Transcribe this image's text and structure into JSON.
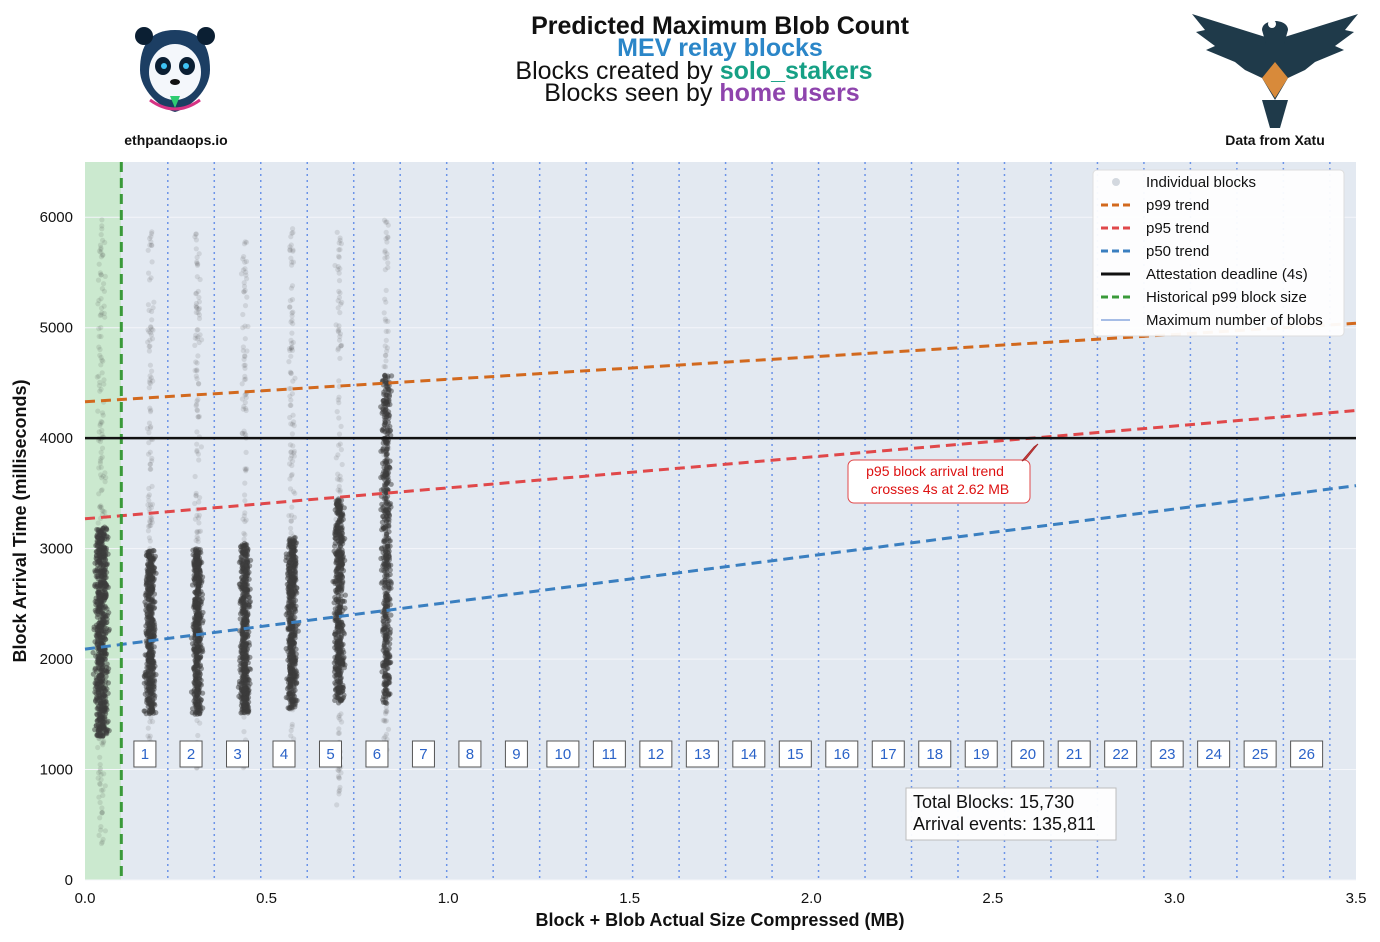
{
  "header": {
    "title": "Predicted Maximum Blob Count",
    "line2": "MEV relay blocks",
    "line3_prefix": "Blocks created by ",
    "line3_highlight": "solo_stakers",
    "line4_prefix": "Blocks seen by ",
    "line4_highlight": "home users",
    "left_brand": "ethpandaops.io",
    "right_brand": "Data from Xatu",
    "colors": {
      "line2": "#2b86c8",
      "solo": "#16a085",
      "home": "#8e44ad"
    }
  },
  "chart_data": {
    "type": "scatter",
    "xlabel": "Block + Blob Actual Size Compressed (MB)",
    "ylabel": "Block Arrival Time (milliseconds)",
    "xlim": [
      0,
      3.5
    ],
    "ylim": [
      0,
      6500
    ],
    "x_ticks": [
      "0.0",
      "0.5",
      "1.0",
      "1.5",
      "2.0",
      "2.5",
      "3.0",
      "3.5"
    ],
    "y_ticks": [
      "0",
      "1000",
      "2000",
      "3000",
      "4000",
      "5000",
      "6000"
    ],
    "grid": true,
    "legend_position": "top-right",
    "legend": [
      {
        "label": "Individual blocks",
        "kind": "marker",
        "color": "#b8bfca"
      },
      {
        "label": "p99 trend",
        "kind": "dashed",
        "color": "#d2691e"
      },
      {
        "label": "p95 trend",
        "kind": "dashed",
        "color": "#e0484a"
      },
      {
        "label": "p50 trend",
        "kind": "dashed",
        "color": "#3a7fc0"
      },
      {
        "label": "Attestation deadline (4s)",
        "kind": "solid",
        "color": "#111111"
      },
      {
        "label": "Historical p99 block size",
        "kind": "dashed",
        "color": "#3a9a3a"
      },
      {
        "label": "Maximum number of blobs",
        "kind": "solid",
        "color": "#a6bde6"
      }
    ],
    "trend_lines": [
      {
        "name": "p99 trend",
        "x": [
          0,
          3.5
        ],
        "y": [
          4330,
          5040
        ],
        "color": "#d2691e"
      },
      {
        "name": "p95 trend",
        "x": [
          0,
          3.5
        ],
        "y": [
          3270,
          4250
        ],
        "color": "#e0484a"
      },
      {
        "name": "p50 trend",
        "x": [
          0,
          3.5
        ],
        "y": [
          2090,
          3570
        ],
        "color": "#3a7fc0"
      }
    ],
    "deadline_ms": 4000,
    "historical_p99_size_mb": 0.1,
    "blob_positions_mb": [
      0.228,
      0.356,
      0.484,
      0.612,
      0.74,
      0.868,
      0.996,
      1.124,
      1.252,
      1.38,
      1.508,
      1.636,
      1.764,
      1.892,
      2.02,
      2.148,
      2.276,
      2.404,
      2.532,
      2.66,
      2.788,
      2.916,
      3.044,
      3.172,
      3.3,
      3.428
    ],
    "blob_labels": [
      "1",
      "2",
      "3",
      "4",
      "5",
      "6",
      "7",
      "8",
      "9",
      "10",
      "11",
      "12",
      "13",
      "14",
      "15",
      "16",
      "17",
      "18",
      "19",
      "20",
      "21",
      "22",
      "23",
      "24",
      "25",
      "26"
    ],
    "clusters": [
      {
        "x": 0.045,
        "y_min": 300,
        "y_max": 6000,
        "y_core": [
          1300,
          3200
        ]
      },
      {
        "x": 0.18,
        "y_min": 1000,
        "y_max": 5900,
        "y_core": [
          1500,
          3000
        ]
      },
      {
        "x": 0.31,
        "y_min": 1000,
        "y_max": 5900,
        "y_core": [
          1500,
          3000
        ]
      },
      {
        "x": 0.44,
        "y_min": 1000,
        "y_max": 5800,
        "y_core": [
          1500,
          3050
        ]
      },
      {
        "x": 0.57,
        "y_min": 1000,
        "y_max": 5900,
        "y_core": [
          1550,
          3100
        ]
      },
      {
        "x": 0.7,
        "y_min": 650,
        "y_max": 5900,
        "y_core": [
          1600,
          3450
        ]
      },
      {
        "x": 0.83,
        "y_min": 1100,
        "y_max": 6000,
        "y_core": [
          1600,
          4600
        ]
      }
    ],
    "annotation": {
      "text_line1": "p95 block arrival trend",
      "text_line2": "crosses 4s at 2.62 MB",
      "x": 2.62,
      "y": 4000
    },
    "stats": {
      "line1": "Total Blocks: 15,730",
      "line2": "Arrival events: 135,811"
    }
  }
}
